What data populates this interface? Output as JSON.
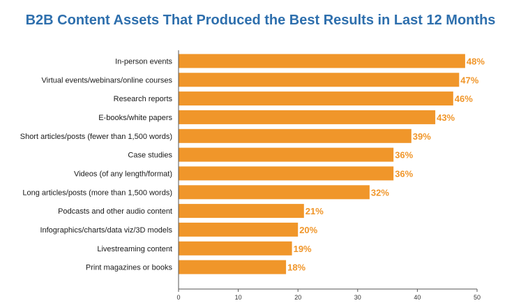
{
  "colors": {
    "title": "#2e6fad",
    "bar": "#f0962a",
    "label": "#f0962a",
    "axis": "#555555"
  },
  "chart_data": {
    "type": "bar",
    "orientation": "horizontal",
    "title": "B2B Content Assets That Produced the Best Results in Last 12 Months",
    "xlabel": "",
    "ylabel": "",
    "xlim": [
      0,
      50
    ],
    "ticks": [
      0,
      10,
      20,
      30,
      40,
      50
    ],
    "tick_labels": [
      "0",
      "10",
      "20",
      "30",
      "40",
      "50"
    ],
    "grid": false,
    "categories": [
      "In-person events",
      "Virtual events/webinars/online courses",
      "Research reports",
      "E-books/white papers",
      "Short articles/posts (fewer than 1,500 words)",
      "Case studies",
      "Videos (of any length/format)",
      "Long articles/posts (more than 1,500 words)",
      "Podcasts and other audio content",
      "Infographics/charts/data viz/3D models",
      "Livestreaming content",
      "Print magazines or books"
    ],
    "values": [
      48,
      47,
      46,
      43,
      39,
      36,
      36,
      32,
      21,
      20,
      19,
      18
    ],
    "value_labels": [
      "48%",
      "47%",
      "46%",
      "43%",
      "39%",
      "36%",
      "36%",
      "32%",
      "21%",
      "20%",
      "19%",
      "18%"
    ]
  }
}
